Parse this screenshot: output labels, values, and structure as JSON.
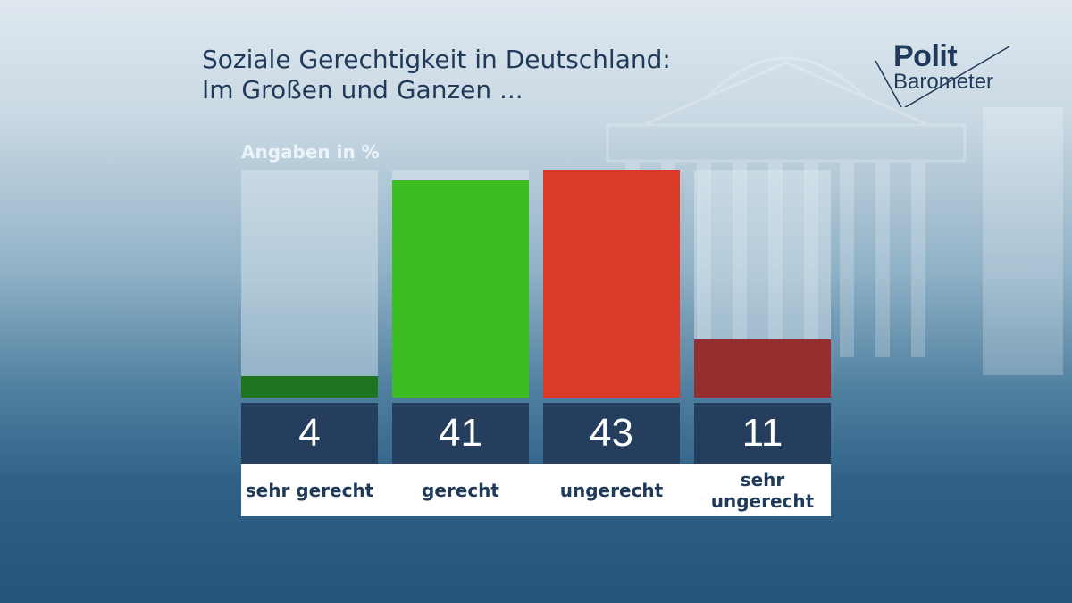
{
  "header": {
    "title_line1": "Soziale Gerechtigkeit in Deutschland:",
    "title_line2": "Im Großen und Ganzen ..."
  },
  "logo": {
    "part1": "Polit",
    "part2": "Barometer"
  },
  "chart_data": {
    "type": "bar",
    "unit_label": "Angaben in %",
    "categories": [
      "sehr gerecht",
      "gerecht",
      "ungerecht",
      "sehr\nungerecht"
    ],
    "values": [
      4,
      41,
      43,
      11
    ],
    "colors": [
      "#1f7420",
      "#3cbe22",
      "#d83c28",
      "#952f2f"
    ],
    "ylim": [
      0,
      43
    ],
    "grid": false,
    "legend": "none"
  }
}
